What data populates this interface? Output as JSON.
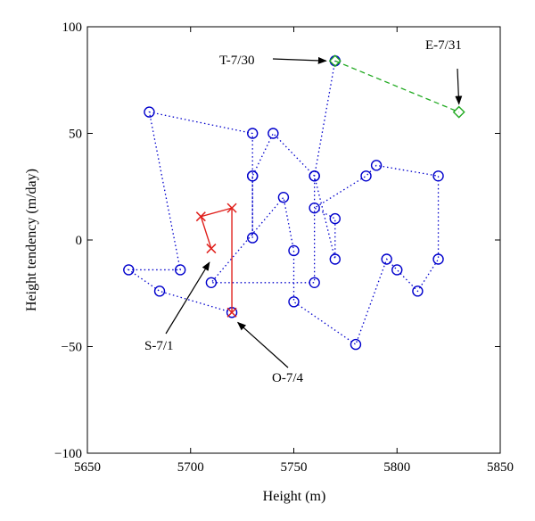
{
  "chart_data": {
    "type": "scatter",
    "title": "",
    "xlabel": "Height (m)",
    "ylabel": "Height tendency (m/day)",
    "xlim": [
      5650,
      5850
    ],
    "ylim": [
      -100,
      100
    ],
    "xticks": [
      5650,
      5700,
      5750,
      5800,
      5850
    ],
    "yticks": [
      -100,
      -50,
      0,
      50,
      100
    ],
    "grid": false,
    "colors": {
      "blue": "#0000cc",
      "red": "#e0201c",
      "green": "#22aa22",
      "axis": "#000000"
    },
    "series": [
      {
        "style": "blue-dotted-circles",
        "points": [
          [
            5720,
            -34
          ],
          [
            5685,
            -24
          ],
          [
            5670,
            -14
          ],
          [
            5695,
            -14
          ],
          [
            5680,
            60
          ],
          [
            5730,
            50
          ],
          [
            5730,
            30
          ],
          [
            5730,
            1
          ],
          [
            5730,
            30
          ],
          [
            5740,
            50
          ],
          [
            5760,
            30
          ],
          [
            5760,
            -20
          ],
          [
            5710,
            -20
          ],
          [
            5745,
            20
          ],
          [
            5750,
            -5
          ],
          [
            5750,
            -29
          ],
          [
            5780,
            -49
          ],
          [
            5795,
            -9
          ],
          [
            5800,
            -14
          ],
          [
            5810,
            -24
          ],
          [
            5820,
            -9
          ],
          [
            5820,
            30
          ],
          [
            5790,
            35
          ],
          [
            5785,
            30
          ],
          [
            5760,
            15
          ],
          [
            5770,
            10
          ],
          [
            5770,
            -9
          ],
          [
            5760,
            30
          ],
          [
            5770,
            84
          ]
        ]
      },
      {
        "style": "red-solid-x",
        "points": [
          [
            5710,
            -4
          ],
          [
            5705,
            11
          ],
          [
            5720,
            15
          ],
          [
            5720,
            -34
          ]
        ]
      },
      {
        "style": "green-dashed-diamond",
        "points": [
          [
            5770,
            84
          ],
          [
            5830,
            60
          ]
        ]
      }
    ],
    "annotations": [
      {
        "text": "T-7/30",
        "target": [
          5770,
          84
        ]
      },
      {
        "text": "E-7/31",
        "target": [
          5830,
          60
        ]
      },
      {
        "text": "S-7/1",
        "target": [
          5710,
          -8
        ]
      },
      {
        "text": "O-7/4",
        "target": [
          5722,
          -37
        ]
      }
    ]
  }
}
